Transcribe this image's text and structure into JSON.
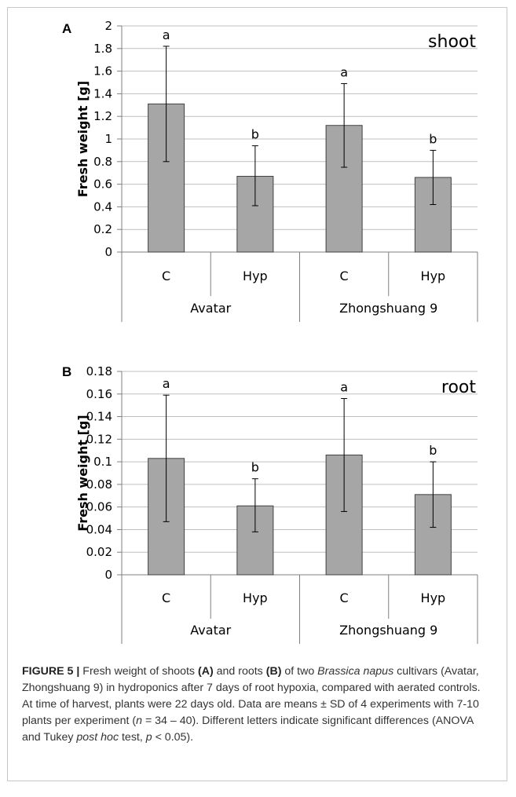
{
  "chart_data": [
    {
      "type": "bar",
      "panel_letter": "A",
      "title": "shoot",
      "ylabel": "Fresh weight [g]",
      "ylim": [
        0,
        2
      ],
      "yticks": [
        "0",
        "0.2",
        "0.4",
        "0.6",
        "0.8",
        "1",
        "1.2",
        "1.4",
        "1.6",
        "1.8",
        "2"
      ],
      "categories": [
        "C",
        "Hyp",
        "C",
        "Hyp"
      ],
      "groups": [
        "Avatar",
        "Zhongshuang 9"
      ],
      "values": [
        1.31,
        0.67,
        1.12,
        0.66
      ],
      "error_low": [
        0.8,
        0.41,
        0.75,
        0.42
      ],
      "error_high": [
        1.82,
        0.94,
        1.49,
        0.9
      ],
      "significance": [
        "a",
        "b",
        "a",
        "b"
      ],
      "grid": true,
      "bar_color": "#a6a6a6"
    },
    {
      "type": "bar",
      "panel_letter": "B",
      "title": "root",
      "ylabel": "Fresh weight [g]",
      "ylim": [
        0,
        0.18
      ],
      "yticks": [
        "0",
        "0.02",
        "0.04",
        "0.06",
        "0.08",
        "0.1",
        "0.12",
        "0.14",
        "0.16",
        "0.18"
      ],
      "categories": [
        "C",
        "Hyp",
        "C",
        "Hyp"
      ],
      "groups": [
        "Avatar",
        "Zhongshuang 9"
      ],
      "values": [
        0.103,
        0.061,
        0.106,
        0.071
      ],
      "error_low": [
        0.047,
        0.038,
        0.056,
        0.042
      ],
      "error_high": [
        0.159,
        0.085,
        0.156,
        0.1
      ],
      "significance": [
        "a",
        "b",
        "a",
        "b"
      ],
      "grid": true,
      "bar_color": "#a6a6a6"
    }
  ],
  "caption": {
    "label": "FIGURE 5 |",
    "t1": " Fresh weight of shoots ",
    "a": "(A)",
    "t2": " and roots ",
    "b": "(B)",
    "t3": " of two ",
    "species": "Brassica napus",
    "t4": " cultivars (Avatar, Zhongshuang 9) in hydroponics after 7 days of root hypoxia, compared with aerated controls. At time of harvest, plants were 22 days old. Data are means ± SD of 4 experiments with 7-10 plants per experiment (",
    "n": "n",
    "t5": " = 34 – 40). Different letters indicate significant differences (ANOVA and Tukey ",
    "posthoc": "post hoc",
    "t6": " test, ",
    "p": "p",
    "t7": " < 0.05)."
  }
}
